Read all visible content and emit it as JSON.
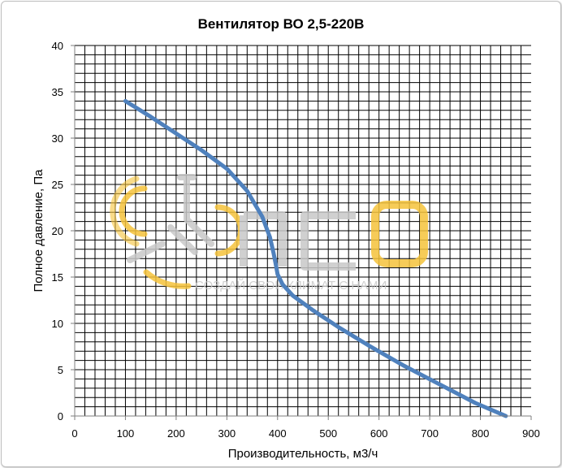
{
  "chart_data": {
    "type": "line",
    "title": "Вентилятор ВО 2,5-220В",
    "xlabel": "Производительность, м3/ч",
    "ylabel": "Полное давление, Па",
    "xlim": [
      0,
      900
    ],
    "ylim": [
      0,
      40
    ],
    "xticks": [
      0,
      100,
      200,
      300,
      400,
      500,
      600,
      700,
      800,
      900
    ],
    "yticks": [
      0,
      5,
      10,
      15,
      20,
      25,
      30,
      35,
      40
    ],
    "grid": true,
    "legend": "none",
    "series": [
      {
        "color": "#4f81bd",
        "x": [
          100,
          150,
          200,
          250,
          300,
          340,
          370,
          385,
          392,
          396,
          400,
          410,
          430,
          470,
          520,
          580,
          650,
          720,
          790,
          850
        ],
        "y": [
          34,
          32.3,
          30.5,
          28.7,
          26.7,
          24.3,
          21.5,
          19.3,
          17.6,
          16.5,
          15.3,
          14.2,
          13,
          11.4,
          9.6,
          7.6,
          5.4,
          3.4,
          1.4,
          0
        ]
      }
    ]
  },
  "watermark": {
    "brand": "ПСО",
    "slogan": "СОЗДАЙ СВОЙ КЛИМАТ С НАМИ",
    "accent_color": "#f5c33b",
    "gray_color": "#c8c8c8"
  }
}
